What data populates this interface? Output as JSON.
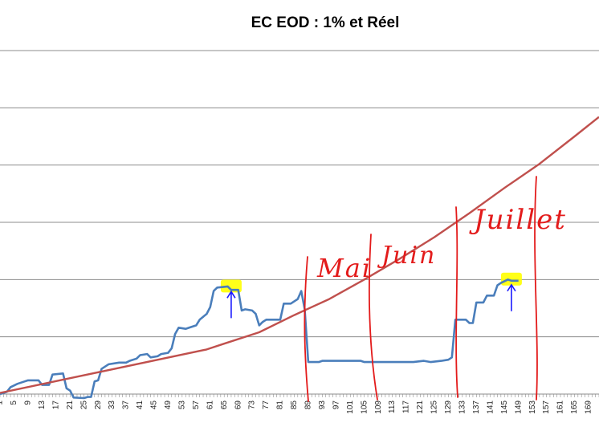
{
  "chart_data": {
    "type": "line",
    "title": "EC EOD : 1% et Réel",
    "xlabel": "",
    "ylabel": "",
    "x_range": [
      1,
      172
    ],
    "y_range": [
      0,
      6
    ],
    "grid": true,
    "x_tick_labels": [
      "1",
      "5",
      "9",
      "13",
      "17",
      "21",
      "25",
      "29",
      "33",
      "37",
      "41",
      "45",
      "49",
      "53",
      "57",
      "61",
      "65",
      "69",
      "73",
      "77",
      "81",
      "85",
      "89",
      "93",
      "97",
      "101",
      "105",
      "109",
      "113",
      "117",
      "121",
      "125",
      "129",
      "133",
      "137",
      "141",
      "145",
      "149",
      "153",
      "157",
      "161",
      "165",
      "169"
    ],
    "series": [
      {
        "color": "#4a7ebb",
        "points": [
          [
            1,
            0.0
          ],
          [
            3,
            0.04
          ],
          [
            4,
            0.12
          ],
          [
            6,
            0.18
          ],
          [
            8,
            0.22
          ],
          [
            9,
            0.24
          ],
          [
            12,
            0.24
          ],
          [
            13,
            0.16
          ],
          [
            15,
            0.16
          ],
          [
            16,
            0.34
          ],
          [
            19,
            0.36
          ],
          [
            20,
            0.1
          ],
          [
            21,
            0.06
          ],
          [
            22,
            -0.06
          ],
          [
            25,
            -0.07
          ],
          [
            26,
            -0.05
          ],
          [
            27,
            -0.05
          ],
          [
            28,
            0.22
          ],
          [
            29,
            0.24
          ],
          [
            30,
            0.44
          ],
          [
            32,
            0.52
          ],
          [
            35,
            0.55
          ],
          [
            37,
            0.55
          ],
          [
            38,
            0.58
          ],
          [
            40,
            0.62
          ],
          [
            41,
            0.68
          ],
          [
            43,
            0.7
          ],
          [
            44,
            0.64
          ],
          [
            46,
            0.66
          ],
          [
            47,
            0.7
          ],
          [
            49,
            0.72
          ],
          [
            50,
            0.8
          ],
          [
            51,
            1.05
          ],
          [
            52,
            1.16
          ],
          [
            54,
            1.14
          ],
          [
            55,
            1.16
          ],
          [
            57,
            1.2
          ],
          [
            58,
            1.3
          ],
          [
            59,
            1.35
          ],
          [
            60,
            1.4
          ],
          [
            61,
            1.52
          ],
          [
            62,
            1.8
          ],
          [
            63,
            1.86
          ],
          [
            66,
            1.88
          ],
          [
            67,
            1.82
          ],
          [
            69,
            1.82
          ],
          [
            70,
            1.46
          ],
          [
            71,
            1.48
          ],
          [
            73,
            1.46
          ],
          [
            74,
            1.4
          ],
          [
            75,
            1.2
          ],
          [
            76,
            1.26
          ],
          [
            77,
            1.3
          ],
          [
            81,
            1.3
          ],
          [
            82,
            1.58
          ],
          [
            84,
            1.58
          ],
          [
            85,
            1.62
          ],
          [
            86,
            1.66
          ],
          [
            87,
            1.8
          ],
          [
            88,
            1.48
          ],
          [
            89,
            0.56
          ],
          [
            92,
            0.56
          ],
          [
            93,
            0.58
          ],
          [
            101,
            0.58
          ],
          [
            104,
            0.58
          ],
          [
            105,
            0.56
          ],
          [
            119,
            0.56
          ],
          [
            122,
            0.58
          ],
          [
            124,
            0.56
          ],
          [
            127,
            0.58
          ],
          [
            129,
            0.6
          ],
          [
            130,
            0.64
          ],
          [
            131,
            1.3
          ],
          [
            133,
            1.3
          ],
          [
            134,
            1.3
          ],
          [
            135,
            1.24
          ],
          [
            136,
            1.24
          ],
          [
            137,
            1.6
          ],
          [
            139,
            1.6
          ],
          [
            140,
            1.72
          ],
          [
            142,
            1.72
          ],
          [
            143,
            1.9
          ],
          [
            144,
            1.94
          ],
          [
            146,
            2.0
          ],
          [
            147,
            1.98
          ],
          [
            149,
            1.98
          ]
        ]
      },
      {
        "color": "#c0504d",
        "points": [
          [
            1,
            0.02
          ],
          [
            60,
            0.78
          ],
          [
            65,
            0.88
          ],
          [
            75,
            1.08
          ],
          [
            85,
            1.38
          ],
          [
            95,
            1.66
          ],
          [
            105,
            2.0
          ],
          [
            115,
            2.36
          ],
          [
            125,
            2.74
          ],
          [
            135,
            3.16
          ],
          [
            145,
            3.6
          ],
          [
            155,
            4.02
          ],
          [
            165,
            4.5
          ],
          [
            172,
            4.84
          ]
        ]
      }
    ],
    "annotations": {
      "handwritten": [
        "Mai",
        "Juin",
        "Juillet"
      ],
      "highlights": [
        {
          "x": 67,
          "y": 1.86,
          "color": "#ffff00"
        },
        {
          "x": 147,
          "y": 1.98,
          "color": "#ffff00"
        }
      ],
      "highlight_arrow_color": "#1a1aff",
      "ink_color": "#e31b1b"
    }
  }
}
